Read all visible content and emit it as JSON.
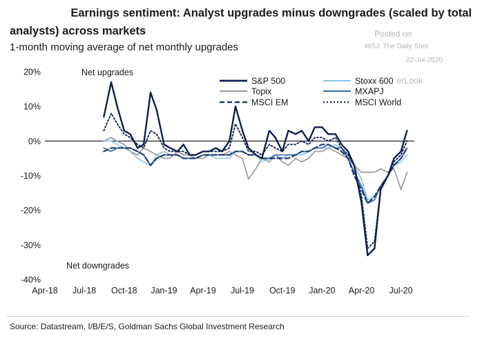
{
  "header": {
    "title_line1": "Earnings sentiment: Analyst upgrades minus downgrades (scaled by total",
    "title_line2": "analysts) across markets",
    "subtitle": "1-month moving average of net monthly upgrades"
  },
  "watermark": {
    "line1": "Posted on",
    "line2": "WSJ: The Daily Shot",
    "line3": "22-Jul-2020",
    "overlay": "erLook"
  },
  "footer": {
    "source": "Source: Datastream, I/B/E/S, Goldman Sachs Global Investment Research"
  },
  "chart_data": {
    "type": "line",
    "title": "Earnings sentiment: Analyst upgrades minus downgrades (scaled by total analysts) across markets",
    "subtitle": "1-month moving average of net monthly upgrades",
    "xlabel": "",
    "ylabel": "",
    "x_range": [
      "2018-04",
      "2020-08"
    ],
    "ylim": [
      -40,
      20
    ],
    "x_tick_labels": [
      "Apr-18",
      "Jul-18",
      "Oct-18",
      "Jan-19",
      "Apr-19",
      "Jul-19",
      "Oct-19",
      "Jan-20",
      "Apr-20",
      "Jul-20"
    ],
    "y_tick_labels": [
      "20%",
      "10%",
      "0%",
      "-10%",
      "-20%",
      "-30%",
      "-40%"
    ],
    "y_ticks": [
      20,
      10,
      0,
      -10,
      -20,
      -30,
      -40
    ],
    "grid": false,
    "zero_line": true,
    "legend_position": "top-right",
    "annotations": [
      "Net upgrades",
      "Net downgrades"
    ],
    "dates": [
      "2018-08-15",
      "2018-09-01",
      "2018-09-15",
      "2018-10-01",
      "2018-10-15",
      "2018-11-01",
      "2018-11-15",
      "2018-12-01",
      "2018-12-15",
      "2019-01-01",
      "2019-01-15",
      "2019-02-01",
      "2019-02-15",
      "2019-03-01",
      "2019-03-15",
      "2019-04-01",
      "2019-04-15",
      "2019-05-01",
      "2019-05-15",
      "2019-06-01",
      "2019-06-15",
      "2019-07-01",
      "2019-07-15",
      "2019-08-01",
      "2019-08-15",
      "2019-09-01",
      "2019-09-15",
      "2019-10-01",
      "2019-10-15",
      "2019-11-01",
      "2019-11-15",
      "2019-12-01",
      "2019-12-15",
      "2020-01-01",
      "2020-01-15",
      "2020-02-01",
      "2020-02-15",
      "2020-03-01",
      "2020-03-15",
      "2020-04-01",
      "2020-04-15",
      "2020-05-01",
      "2020-05-15",
      "2020-06-01",
      "2020-06-15",
      "2020-07-01",
      "2020-07-15"
    ],
    "series": [
      {
        "name": "S&P 500",
        "color": "#0d1f4d",
        "dash": "solid",
        "width": 2.4,
        "values": [
          7,
          17,
          10,
          3,
          2,
          -2,
          -1,
          14,
          9,
          -1,
          -2,
          -3,
          -1,
          -4,
          -4,
          -3,
          -3,
          -2,
          -3,
          0,
          10,
          3,
          -2,
          -4,
          -5,
          3,
          1,
          -3,
          3,
          2,
          3,
          0,
          4,
          4,
          2,
          2,
          -1,
          -3,
          -7,
          -18,
          -33,
          -31,
          -14,
          -10,
          -5,
          -3,
          3
        ]
      },
      {
        "name": "Stoxx 600",
        "color": "#8fc4e6",
        "dash": "solid",
        "width": 1.6,
        "values": [
          0,
          0,
          -1,
          -2,
          -3,
          -5,
          -6,
          -7,
          -4,
          -3,
          -4,
          -4,
          -5,
          -5,
          -5,
          -4,
          -4,
          -5,
          -5,
          -5,
          -3,
          -3,
          -4,
          -4,
          -6,
          -5,
          -4,
          -5,
          -4,
          -4,
          -4,
          -3,
          -2,
          -2,
          -2,
          -1,
          -2,
          -4,
          -7,
          -11,
          -17,
          -16,
          -13,
          -10,
          -7,
          -6,
          -4
        ]
      },
      {
        "name": "Topix",
        "color": "#9e9e9e",
        "dash": "solid",
        "width": 1.8,
        "values": [
          0,
          1,
          0,
          -1,
          -3,
          -4,
          -2,
          -3,
          -4,
          -5,
          -5,
          -3,
          -4,
          -4,
          -5,
          -5,
          -4,
          -4,
          -4,
          -3,
          -4,
          -5,
          -11,
          -8,
          -5,
          -6,
          -4,
          -6,
          -7,
          -5,
          -6,
          -5,
          -3,
          -3,
          -2,
          -3,
          -4,
          -5,
          -7,
          -9,
          -9,
          -9,
          -8,
          -9,
          -8,
          -14,
          -9
        ]
      },
      {
        "name": "MXAPJ",
        "color": "#3f72b5",
        "dash": "solid",
        "width": 1.8,
        "values": [
          -2,
          -3,
          -2,
          -2,
          -2,
          -3,
          -4,
          -7,
          -5,
          -4,
          -4,
          -4,
          -5,
          -5,
          -5,
          -4,
          -4,
          -4,
          -4,
          -4,
          -3,
          -3,
          -4,
          -4,
          -5,
          -5,
          -4,
          -4,
          -4,
          -4,
          -3,
          -3,
          -2,
          -2,
          -1,
          -2,
          -2,
          -5,
          -9,
          -13,
          -18,
          -17,
          -13,
          -10,
          -7,
          -5,
          -2
        ]
      },
      {
        "name": "MSCI EM",
        "color": "#1b3b73",
        "dash": "dashed",
        "width": 2.2,
        "values": [
          -3,
          -2,
          -2,
          -2,
          -2,
          -3,
          -4,
          -7,
          -5,
          -4,
          -4,
          -4,
          -5,
          -5,
          -5,
          -4,
          -4,
          -4,
          -4,
          -4,
          -3,
          -3,
          -4,
          -4,
          -5,
          -5,
          -5,
          -5,
          -5,
          -4,
          -3,
          -3,
          -2,
          -1,
          -1,
          -2,
          -3,
          -5,
          -10,
          -14,
          -18,
          -16,
          -13,
          -10,
          -7,
          -5,
          -2
        ]
      },
      {
        "name": "MSCI World",
        "color": "#1a2b55",
        "dash": "dotted",
        "width": 2.0,
        "values": [
          3,
          8,
          5,
          2,
          1,
          -1,
          -2,
          3,
          2,
          -2,
          -3,
          -3,
          -3,
          -4,
          -4,
          -3,
          -3,
          -3,
          -3,
          -2,
          5,
          1,
          -3,
          -3,
          -4,
          -1,
          -2,
          -3,
          -1,
          -1,
          0,
          -1,
          1,
          1,
          0,
          1,
          -2,
          -4,
          -7,
          -16,
          -31,
          -29,
          -14,
          -10,
          -6,
          -4,
          0
        ]
      }
    ]
  }
}
